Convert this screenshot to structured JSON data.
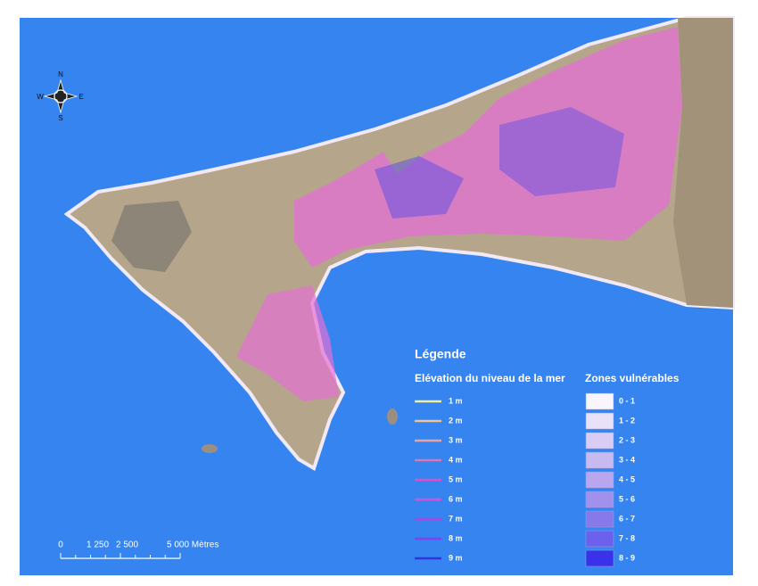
{
  "compass": {
    "north": "N",
    "south": "S",
    "east": "E",
    "west": "W"
  },
  "scale_bar": {
    "labels": [
      "0",
      "1 250",
      "2 500",
      "5 000 Mètres"
    ]
  },
  "legend": {
    "title": "Légende",
    "lines_header": "Elévation du niveau de la mer",
    "zones_header": "Zones vulnérables",
    "lines": [
      {
        "label": "1 m",
        "color": "#f3eea0"
      },
      {
        "label": "2 m",
        "color": "#f1c493"
      },
      {
        "label": "3 m",
        "color": "#e9a3a3"
      },
      {
        "label": "4 m",
        "color": "#e274b2"
      },
      {
        "label": "5 m",
        "color": "#e04fc8"
      },
      {
        "label": "6 m",
        "color": "#cf52da"
      },
      {
        "label": "7 m",
        "color": "#b243e2"
      },
      {
        "label": "8 m",
        "color": "#8240f0"
      },
      {
        "label": "9 m",
        "color": "#3232e0"
      }
    ],
    "zones": [
      {
        "label": "0 - 1",
        "color": "#f8f5fd"
      },
      {
        "label": "1 - 2",
        "color": "#e8e1f8"
      },
      {
        "label": "2 - 3",
        "color": "#d9cdf5"
      },
      {
        "label": "3 - 4",
        "color": "#c9b9f1"
      },
      {
        "label": "4 - 5",
        "color": "#b9a6ef"
      },
      {
        "label": "5 - 6",
        "color": "#a191ec"
      },
      {
        "label": "6 - 7",
        "color": "#8879ea"
      },
      {
        "label": "7 - 8",
        "color": "#6b61ec"
      },
      {
        "label": "8 - 9",
        "color": "#3a31ea"
      }
    ]
  }
}
